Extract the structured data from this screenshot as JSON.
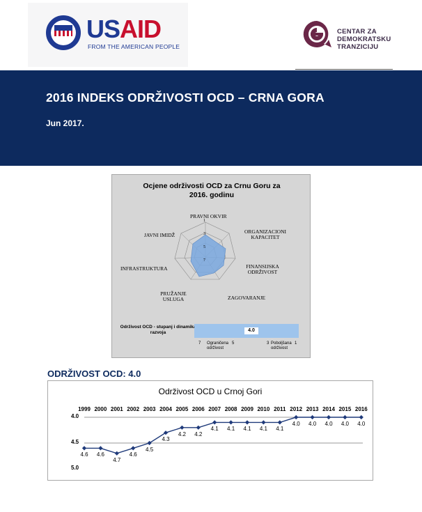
{
  "header": {
    "usaid_word_us": "US",
    "usaid_word_aid": "AID",
    "usaid_tagline": "FROM THE AMERICAN PEOPLE",
    "cdt_lines": [
      "CENTAR ZA",
      "DEMOKRATSKU",
      "TRANZICIJU"
    ]
  },
  "banner": {
    "title": "2016 INDEKS ODRŽIVOSTI OCD – CRNA GORA",
    "date": "Jun 2017."
  },
  "radar": {
    "title_line1": "Ocjene održivosti OCD za Crnu Goru za",
    "title_line2": "2016. godinu",
    "axes": [
      "PRAVNI OKVIR",
      "ORGANIZACIONI KAPACITET",
      "FINANSIJSKA ODRŽIVOST",
      "ZAGOVARANJE",
      "PRUŽANJE USLUGA",
      "INFRASTRUKTURA",
      "JAVNI IMIDŽ"
    ],
    "scale_ticks": [
      "1",
      "3",
      "5",
      "7"
    ],
    "index_label": "Održivost OCD - stupanj i dinamika razvoja",
    "index_value": "4.0",
    "scale_left_num": "7",
    "scale_left_text": "Ograničena održivost",
    "scale_mid_num": "5",
    "scale_right_num": "3",
    "scale_right_text": "Poboljšana održivost",
    "scale_end_num": "1"
  },
  "section": {
    "title": "ODRŽIVOST OCD: 4.0"
  },
  "chart_data": {
    "type": "line",
    "title": "Održivost OCD u Crnoj Gori",
    "x": [
      "1999",
      "2000",
      "2001",
      "2002",
      "2003",
      "2004",
      "2005",
      "2006",
      "2007",
      "2008",
      "2009",
      "2010",
      "2011",
      "2012",
      "2013",
      "2014",
      "2015",
      "2016"
    ],
    "series": [
      {
        "values": [
          4.6,
          4.6,
          4.7,
          4.6,
          4.5,
          4.3,
          4.2,
          4.2,
          4.1,
          4.1,
          4.1,
          4.1,
          4.1,
          4.0,
          4.0,
          4.0,
          4.0,
          4.0
        ]
      }
    ],
    "y_ticks": [
      "4.0",
      "4.5",
      "5.0"
    ],
    "ylim": [
      4.0,
      5.0
    ],
    "y_inverted": true,
    "color": "#1f3a7a"
  }
}
